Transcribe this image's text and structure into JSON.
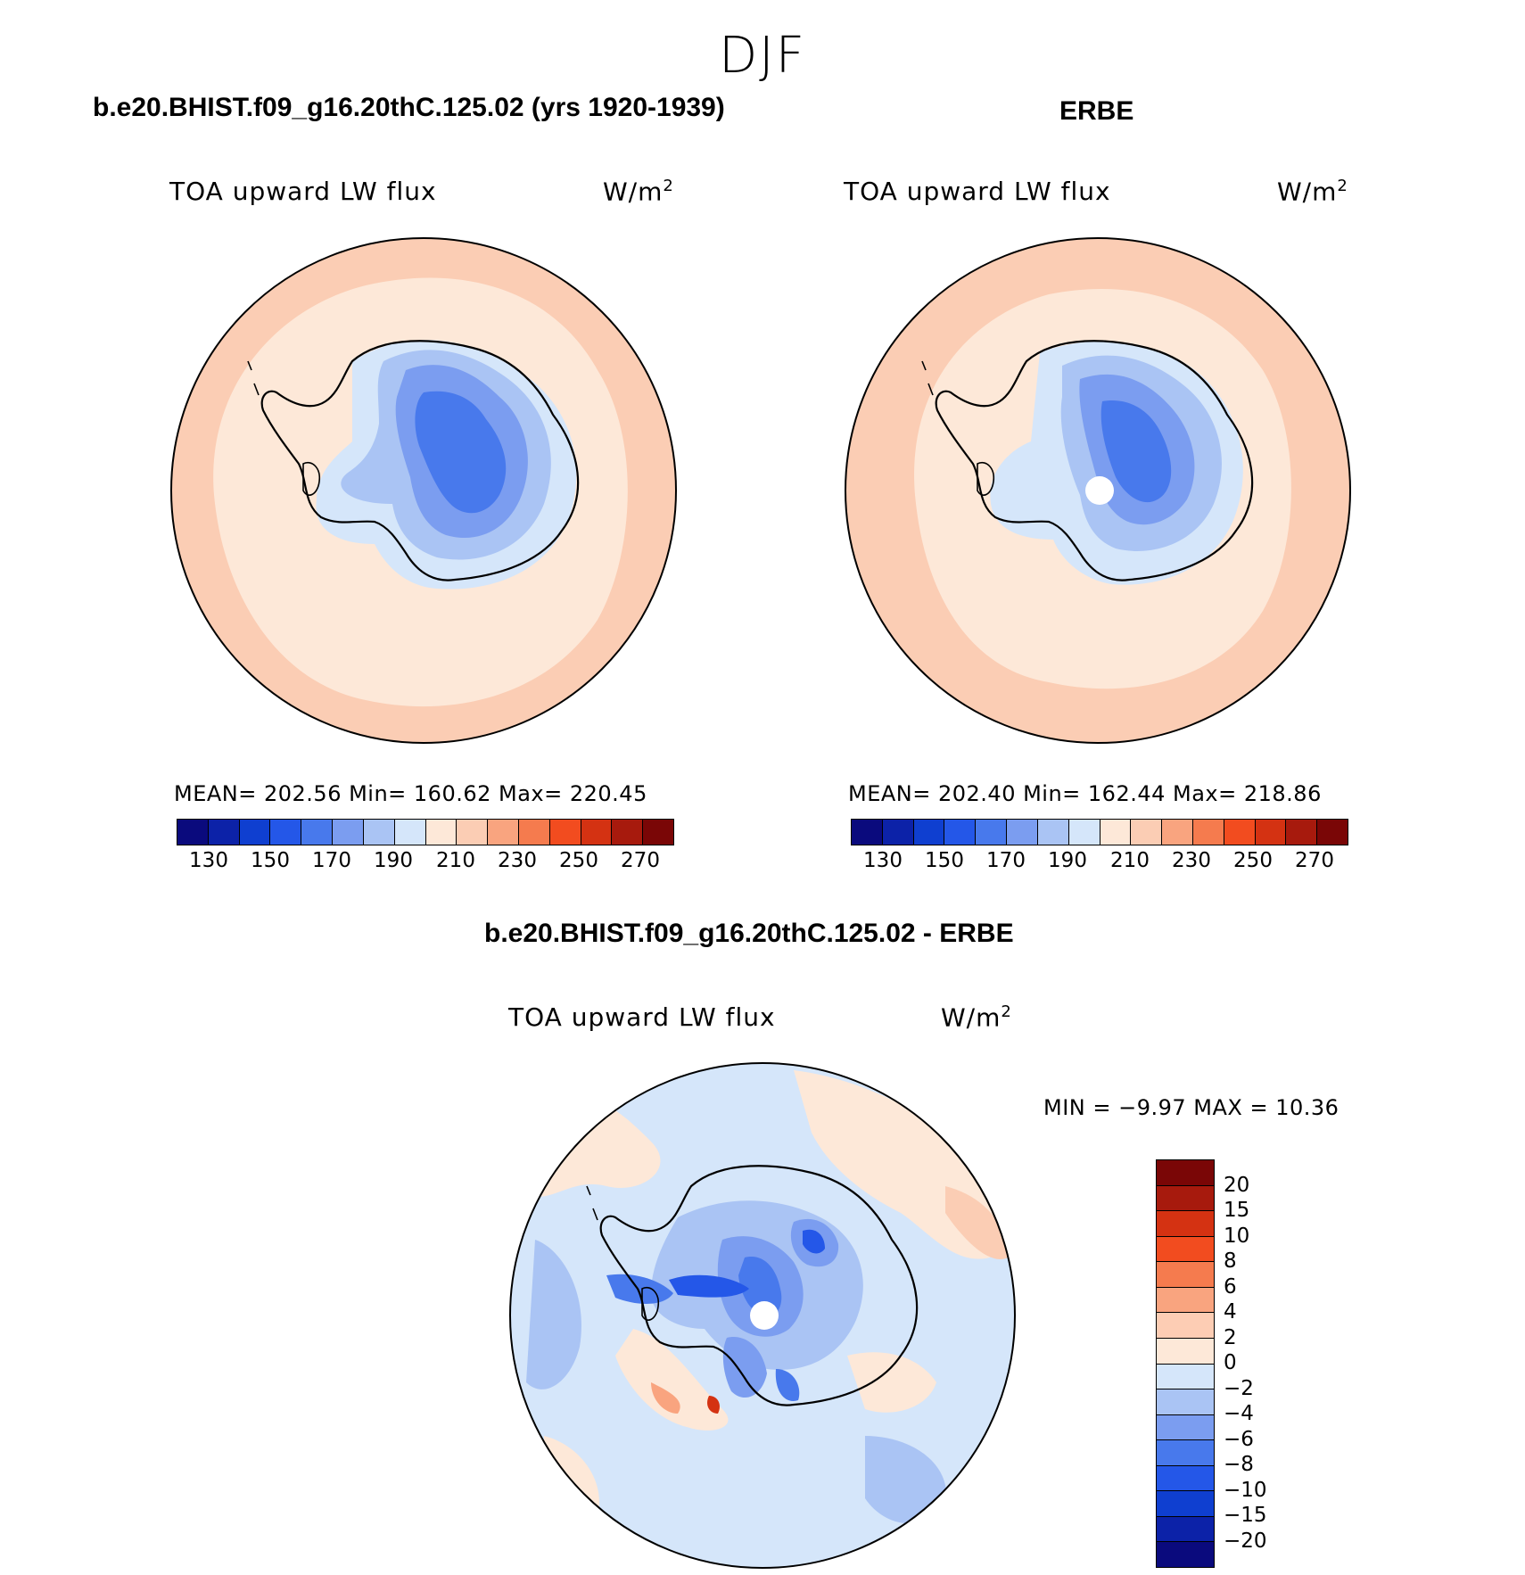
{
  "figure_title": "DJF",
  "panels": [
    {
      "title": "b.e20.BHIST.f09_g16.20thC.125.02 (yrs 1920-1939)",
      "variable": "TOA upward LW flux",
      "units": "W/m",
      "units_sup": "2",
      "stats": "MEAN= 202.56   Min= 160.62   Max= 220.45"
    },
    {
      "title": "ERBE",
      "variable": "TOA upward LW flux",
      "units": "W/m",
      "units_sup": "2",
      "stats": "MEAN= 202.40   Min= 162.44   Max= 218.86"
    },
    {
      "title": "b.e20.BHIST.f09_g16.20thC.125.02 - ERBE",
      "variable": "TOA upward LW flux",
      "units": "W/m",
      "units_sup": "2",
      "stats": "MIN =   −9.97 MAX =   10.36"
    }
  ],
  "colorbar_abs": {
    "ticks": [
      "130",
      "150",
      "170",
      "190",
      "210",
      "230",
      "250",
      "270"
    ],
    "colors": [
      "#0a0a7d",
      "#0c22a8",
      "#0f3fd0",
      "#2457e8",
      "#4879ec",
      "#7b9df0",
      "#aac4f4",
      "#d5e6fa",
      "#fde8d8",
      "#fbcdb4",
      "#f9a47f",
      "#f57b4e",
      "#f24c1f",
      "#d43212",
      "#a71a0d",
      "#7a0606"
    ]
  },
  "colorbar_diff": {
    "ticks": [
      "20",
      "15",
      "10",
      "8",
      "6",
      "4",
      "2",
      "0",
      "−2",
      "−4",
      "−6",
      "−8",
      "−10",
      "−15",
      "−20"
    ],
    "colors": [
      "#7a0606",
      "#a71a0d",
      "#d43212",
      "#f24c1f",
      "#f57b4e",
      "#f9a47f",
      "#fdcdb4",
      "#fde8d8",
      "#d5e6fa",
      "#aac4f4",
      "#7b9df0",
      "#4879ec",
      "#2457e8",
      "#0f3fd0",
      "#0c22a8",
      "#0a0a7d"
    ]
  }
}
